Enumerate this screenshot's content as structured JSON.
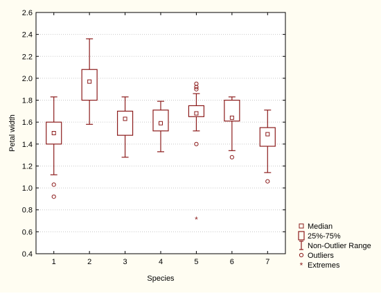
{
  "chart_data": {
    "type": "box",
    "xlabel": "Species",
    "ylabel": "Petal width",
    "categories": [
      "1",
      "2",
      "3",
      "4",
      "5",
      "6",
      "7"
    ],
    "ylim": [
      0.4,
      2.6
    ],
    "yticks": [
      "0.4",
      "0.6",
      "0.8",
      "1.0",
      "1.2",
      "1.4",
      "1.6",
      "1.8",
      "2.0",
      "2.2",
      "2.4",
      "2.6"
    ],
    "grid": true,
    "legend_position": "bottom-right",
    "legend": [
      "Median",
      "25%-75%",
      "Non-Outlier Range",
      "Outliers",
      "Extremes"
    ],
    "color": "#8b1a1a",
    "boxes": [
      {
        "category": "1",
        "median": 1.5,
        "q1": 1.4,
        "q3": 1.6,
        "whisker_low": 1.12,
        "whisker_high": 1.83,
        "outliers": [
          1.03,
          0.92
        ],
        "extremes": []
      },
      {
        "category": "2",
        "median": 1.97,
        "q1": 1.8,
        "q3": 2.08,
        "whisker_low": 1.58,
        "whisker_high": 2.36,
        "outliers": [],
        "extremes": []
      },
      {
        "category": "3",
        "median": 1.63,
        "q1": 1.48,
        "q3": 1.7,
        "whisker_low": 1.28,
        "whisker_high": 1.83,
        "outliers": [],
        "extremes": []
      },
      {
        "category": "4",
        "median": 1.59,
        "q1": 1.52,
        "q3": 1.71,
        "whisker_low": 1.33,
        "whisker_high": 1.79,
        "outliers": [],
        "extremes": []
      },
      {
        "category": "5",
        "median": 1.68,
        "q1": 1.65,
        "q3": 1.75,
        "whisker_low": 1.52,
        "whisker_high": 1.86,
        "outliers": [
          1.95,
          1.92,
          1.9,
          1.4
        ],
        "extremes": [
          0.71
        ]
      },
      {
        "category": "6",
        "median": 1.64,
        "q1": 1.61,
        "q3": 1.8,
        "whisker_low": 1.34,
        "whisker_high": 1.83,
        "outliers": [
          1.28
        ],
        "extremes": []
      },
      {
        "category": "7",
        "median": 1.49,
        "q1": 1.38,
        "q3": 1.55,
        "whisker_low": 1.14,
        "whisker_high": 1.71,
        "outliers": [
          1.06
        ],
        "extremes": []
      }
    ]
  }
}
